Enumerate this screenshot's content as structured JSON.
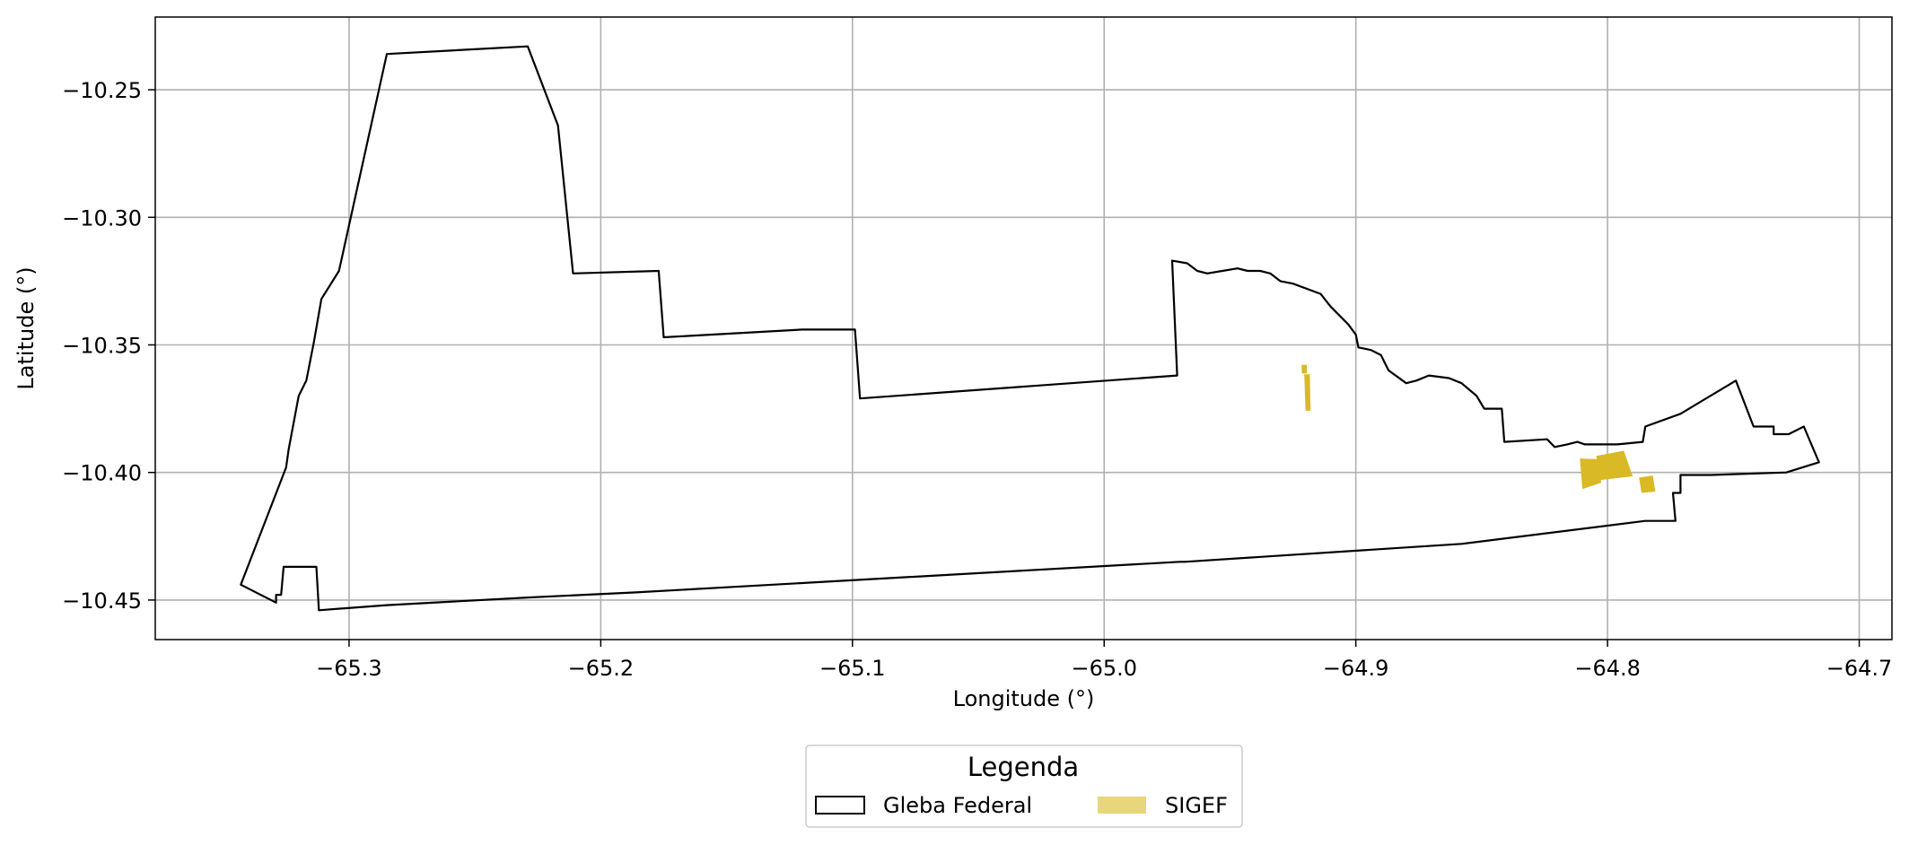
{
  "chart_data": {
    "type": "map",
    "xlabel": "Longitude (°)",
    "ylabel": "Latitude (°)",
    "xlim": [
      -65.377,
      -64.687
    ],
    "ylim": [
      -10.4655,
      -10.2215
    ],
    "grid": true,
    "x_ticks": [
      -65.3,
      -65.2,
      -65.1,
      -65.0,
      -64.9,
      -64.8,
      -64.7
    ],
    "x_tick_labels": [
      "−65.3",
      "−65.2",
      "−65.1",
      "−65.0",
      "−64.9",
      "−64.8",
      "−64.7"
    ],
    "y_ticks": [
      -10.25,
      -10.3,
      -10.35,
      -10.4,
      -10.45
    ],
    "y_tick_labels": [
      "−10.25",
      "−10.30",
      "−10.35",
      "−10.40",
      "−10.45"
    ],
    "legend": {
      "title": "Legenda",
      "placement": "bottom-center",
      "entries": [
        {
          "label": "Gleba Federal",
          "style": "outline",
          "color": "#000000"
        },
        {
          "label": "SIGEF",
          "style": "fill",
          "color": "#e8d67a"
        }
      ]
    },
    "series": [
      {
        "name": "Gleba Federal",
        "kind": "polygon",
        "stroke": "#000000",
        "fill": "none",
        "coordinates": [
          [
            -65.285,
            -10.236
          ],
          [
            -65.229,
            -10.233
          ],
          [
            -65.217,
            -10.264
          ],
          [
            -65.211,
            -10.322
          ],
          [
            -65.177,
            -10.321
          ],
          [
            -65.175,
            -10.347
          ],
          [
            -65.12,
            -10.344
          ],
          [
            -65.099,
            -10.344
          ],
          [
            -65.097,
            -10.371
          ],
          [
            -64.971,
            -10.362
          ],
          [
            -64.973,
            -10.317
          ],
          [
            -64.967,
            -10.318
          ],
          [
            -64.963,
            -10.321
          ],
          [
            -64.959,
            -10.322
          ],
          [
            -64.953,
            -10.321
          ],
          [
            -64.947,
            -10.32
          ],
          [
            -64.943,
            -10.321
          ],
          [
            -64.938,
            -10.321
          ],
          [
            -64.934,
            -10.322
          ],
          [
            -64.93,
            -10.325
          ],
          [
            -64.925,
            -10.326
          ],
          [
            -64.914,
            -10.33
          ],
          [
            -64.91,
            -10.335
          ],
          [
            -64.903,
            -10.342
          ],
          [
            -64.9,
            -10.346
          ],
          [
            -64.899,
            -10.351
          ],
          [
            -64.894,
            -10.352
          ],
          [
            -64.89,
            -10.354
          ],
          [
            -64.887,
            -10.36
          ],
          [
            -64.88,
            -10.365
          ],
          [
            -64.876,
            -10.364
          ],
          [
            -64.871,
            -10.362
          ],
          [
            -64.863,
            -10.363
          ],
          [
            -64.858,
            -10.365
          ],
          [
            -64.852,
            -10.37
          ],
          [
            -64.849,
            -10.375
          ],
          [
            -64.842,
            -10.375
          ],
          [
            -64.841,
            -10.388
          ],
          [
            -64.824,
            -10.387
          ],
          [
            -64.821,
            -10.39
          ],
          [
            -64.816,
            -10.389
          ],
          [
            -64.812,
            -10.388
          ],
          [
            -64.809,
            -10.389
          ],
          [
            -64.796,
            -10.389
          ],
          [
            -64.786,
            -10.388
          ],
          [
            -64.785,
            -10.382
          ],
          [
            -64.771,
            -10.377
          ],
          [
            -64.749,
            -10.364
          ],
          [
            -64.742,
            -10.382
          ],
          [
            -64.734,
            -10.382
          ],
          [
            -64.734,
            -10.385
          ],
          [
            -64.728,
            -10.385
          ],
          [
            -64.722,
            -10.382
          ],
          [
            -64.716,
            -10.396
          ],
          [
            -64.729,
            -10.4
          ],
          [
            -64.759,
            -10.401
          ],
          [
            -64.771,
            -10.401
          ],
          [
            -64.771,
            -10.408
          ],
          [
            -64.774,
            -10.408
          ],
          [
            -64.773,
            -10.419
          ],
          [
            -64.785,
            -10.419
          ],
          [
            -64.858,
            -10.428
          ],
          [
            -64.968,
            -10.435
          ],
          [
            -64.97,
            -10.435
          ],
          [
            -65.15,
            -10.445
          ],
          [
            -65.186,
            -10.447
          ],
          [
            -65.229,
            -10.449
          ],
          [
            -65.285,
            -10.452
          ],
          [
            -65.312,
            -10.454
          ],
          [
            -65.313,
            -10.437
          ],
          [
            -65.326,
            -10.437
          ],
          [
            -65.327,
            -10.448
          ],
          [
            -65.329,
            -10.448
          ],
          [
            -65.329,
            -10.451
          ],
          [
            -65.343,
            -10.444
          ],
          [
            -65.325,
            -10.398
          ],
          [
            -65.324,
            -10.391
          ],
          [
            -65.32,
            -10.37
          ],
          [
            -65.317,
            -10.364
          ],
          [
            -65.314,
            -10.349
          ],
          [
            -65.311,
            -10.332
          ],
          [
            -65.304,
            -10.321
          ],
          [
            -65.285,
            -10.236
          ]
        ]
      },
      {
        "name": "SIGEF",
        "kind": "polygons",
        "fill": "#d9b925",
        "polygons": [
          [
            [
              -64.9215,
              -10.3578
            ],
            [
              -64.9195,
              -10.3578
            ],
            [
              -64.9195,
              -10.3612
            ],
            [
              -64.9215,
              -10.3612
            ]
          ],
          [
            [
              -64.9205,
              -10.3615
            ],
            [
              -64.9183,
              -10.3615
            ],
            [
              -64.918,
              -10.3758
            ],
            [
              -64.92,
              -10.3758
            ]
          ],
          [
            [
              -64.811,
              -10.3945
            ],
            [
              -64.804,
              -10.3948
            ],
            [
              -64.8025,
              -10.404
            ],
            [
              -64.81,
              -10.4065
            ]
          ],
          [
            [
              -64.8045,
              -10.3935
            ],
            [
              -64.7935,
              -10.3915
            ],
            [
              -64.79,
              -10.4015
            ],
            [
              -64.803,
              -10.403
            ]
          ],
          [
            [
              -64.7875,
              -10.402
            ],
            [
              -64.782,
              -10.4012
            ],
            [
              -64.781,
              -10.4075
            ],
            [
              -64.7865,
              -10.408
            ]
          ]
        ]
      }
    ]
  }
}
